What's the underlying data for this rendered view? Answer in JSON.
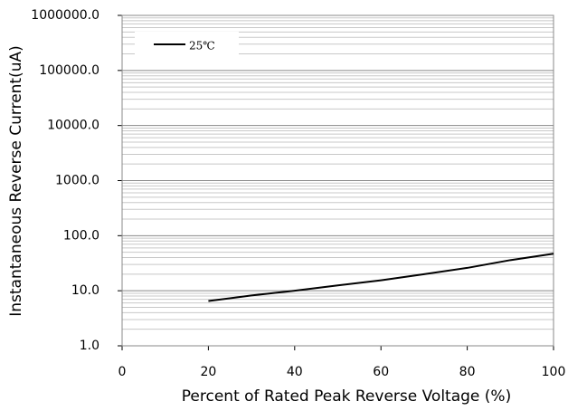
{
  "chart_data": {
    "type": "line",
    "x_label": "Percent of  Rated Peak Reverse Voltage (%)",
    "y_label": "Instantaneous Reverse Current(uA)",
    "x": [
      20,
      30,
      40,
      50,
      60,
      70,
      80,
      90,
      100
    ],
    "series": [
      {
        "name": "25℃",
        "color": "#000000",
        "values": [
          6.5,
          8.2,
          10,
          12.5,
          15.5,
          20,
          26,
          36,
          47
        ]
      }
    ],
    "xlim": [
      0,
      100
    ],
    "xticks": [
      0,
      20,
      40,
      60,
      80,
      100
    ],
    "ylim": [
      1,
      1000000
    ],
    "yticks": [
      {
        "value": 1,
        "label": "1.0"
      },
      {
        "value": 10,
        "label": "10.0"
      },
      {
        "value": 100,
        "label": "100.0"
      },
      {
        "value": 1000,
        "label": "1000.0"
      },
      {
        "value": 10000,
        "label": "10000.0"
      },
      {
        "value": 100000,
        "label": "100000.0"
      },
      {
        "value": 1000000,
        "label": "1000000.0"
      }
    ],
    "y_scale": "log",
    "grid": true,
    "minor_grid": true,
    "legend": "upper-left"
  }
}
